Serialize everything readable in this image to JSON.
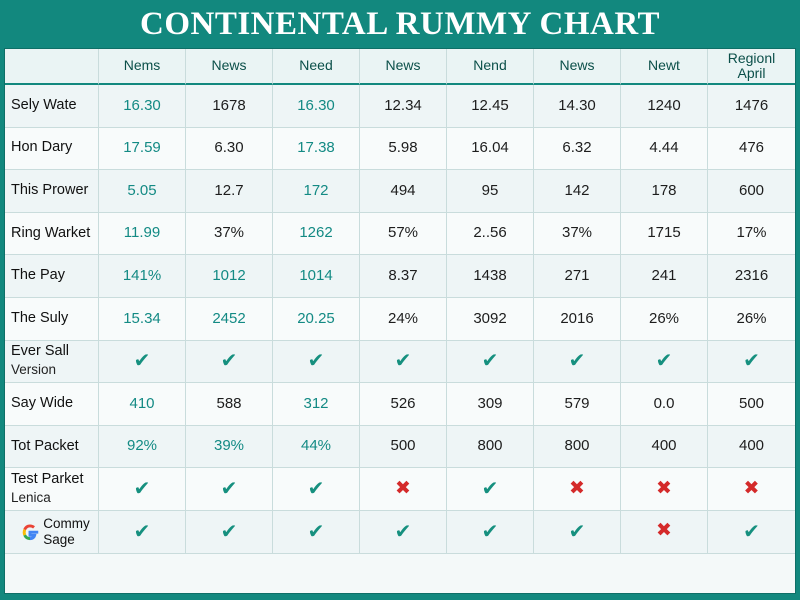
{
  "title": "CONTINENTAL RUMMY CHART",
  "columns": [
    "Nems",
    "News",
    "Need",
    "News",
    "Nend",
    "News",
    "Newt",
    "Regionl April"
  ],
  "rows": [
    {
      "label": "Sely Wate",
      "sub": "",
      "cells": [
        "16.30",
        "1678",
        "16.30",
        "12.34",
        "12.45",
        "14.30",
        "1240",
        "1476"
      ]
    },
    {
      "label": "Hon Dary",
      "sub": "",
      "cells": [
        "17.59",
        "6.30",
        "17.38",
        "5.98",
        "16.04",
        "6.32",
        "4.44",
        "476"
      ]
    },
    {
      "label": "This Prower",
      "sub": "",
      "cells": [
        "5.05",
        "12.7",
        "172",
        "494",
        "95",
        "142",
        "178",
        "600"
      ]
    },
    {
      "label": "Ring Warket",
      "sub": "",
      "cells": [
        "11.99",
        "37%",
        "1262",
        "57%",
        "2..56",
        "37%",
        "1715",
        "17%"
      ]
    },
    {
      "label": "The Pay",
      "sub": "",
      "cells": [
        "141%",
        "1012",
        "1014",
        "8.37",
        "1438",
        "271",
        "241",
        "2316"
      ]
    },
    {
      "label": "The Suly",
      "sub": "",
      "cells": [
        "15.34",
        "2452",
        "20.25",
        "24%",
        "3092",
        "2016",
        "26%",
        "26%"
      ]
    },
    {
      "label": "Ever Sall",
      "sub": "Version",
      "cells": [
        "check",
        "check",
        "check",
        "check",
        "check",
        "check",
        "check",
        "check"
      ]
    },
    {
      "label": "Say Wide",
      "sub": "",
      "cells": [
        "410",
        "588",
        "312",
        "526",
        "309",
        "579",
        "0.0",
        "500"
      ]
    },
    {
      "label": "Tot Packet",
      "sub": "",
      "cells": [
        "92%",
        "39%",
        "44%",
        "500",
        "800",
        "800",
        "400",
        "400"
      ]
    },
    {
      "label": "Test Parket",
      "sub": "Lenica",
      "cells": [
        "check",
        "check",
        "check",
        "cross",
        "check",
        "cross",
        "cross",
        "cross"
      ]
    },
    {
      "label": "Commy",
      "sub": "Sage",
      "logo": "google-g-icon",
      "cells": [
        "check",
        "check",
        "check",
        "check",
        "check",
        "check",
        "cross",
        "check"
      ]
    }
  ],
  "teal_columns": [
    0,
    2
  ],
  "colors": {
    "header_bg": "#12887e",
    "check": "#16907f",
    "cross": "#d42a2a"
  }
}
